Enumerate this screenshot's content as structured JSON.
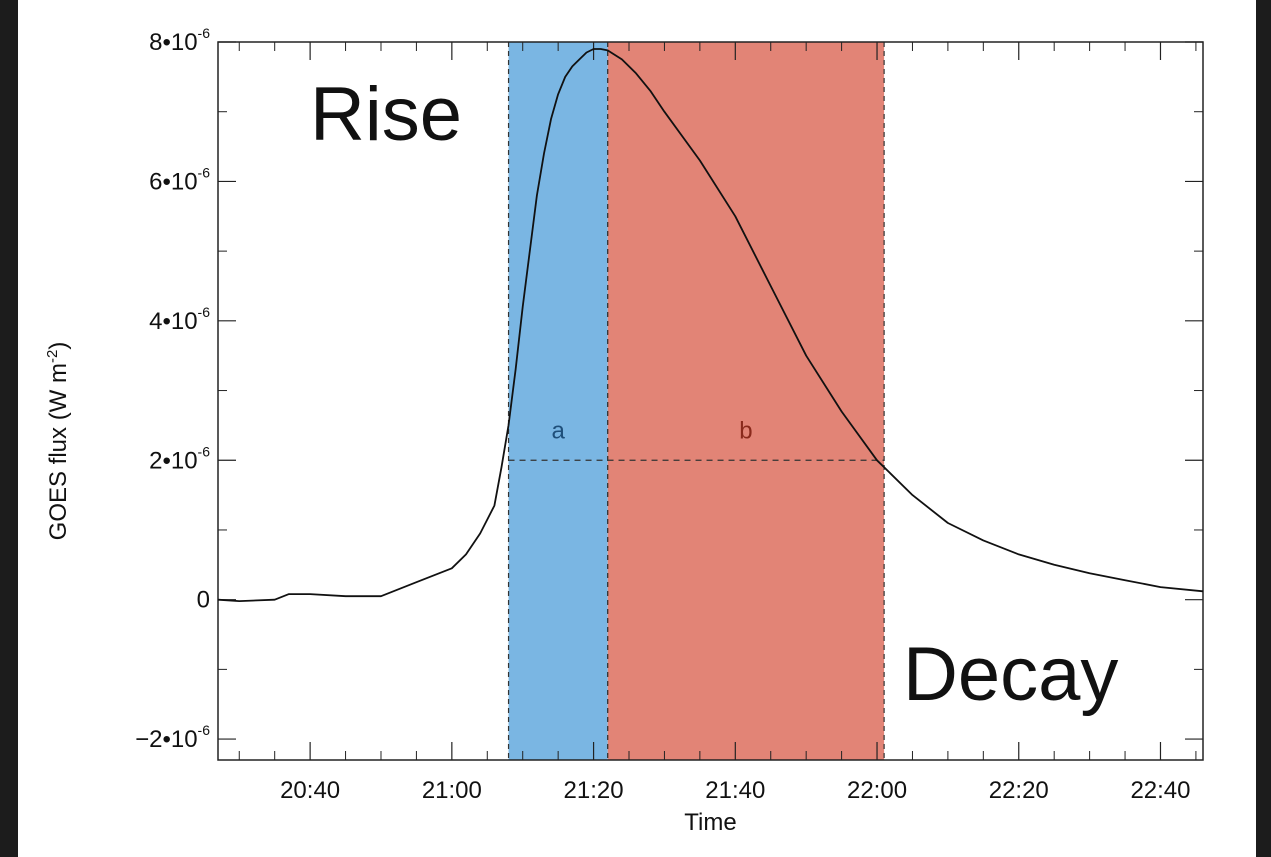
{
  "chart_data": {
    "type": "line",
    "xlabel": "Time",
    "ylabel": "GOES flux (W m",
    "ylabel_sup": "-2",
    "ylabel_close": ")",
    "xlim": [
      "20:27",
      "22:46"
    ],
    "ylim": [
      -2.3e-06,
      8e-06
    ],
    "x_ticks": [
      "20:40",
      "21:00",
      "21:20",
      "21:40",
      "22:00",
      "22:20",
      "22:40"
    ],
    "y_ticks": [
      {
        "value": 8e-06,
        "mantissa": "8•10",
        "exp": "-6"
      },
      {
        "value": 6e-06,
        "mantissa": "6•10",
        "exp": "-6"
      },
      {
        "value": 4e-06,
        "mantissa": "4•10",
        "exp": "-6"
      },
      {
        "value": 2e-06,
        "mantissa": "2•10",
        "exp": "-6"
      },
      {
        "value": 0,
        "mantissa": "0",
        "exp": ""
      },
      {
        "value": -2e-06,
        "mantissa": "−2•10",
        "exp": "-6"
      }
    ],
    "series": [
      {
        "color": "#111111",
        "x": [
          "20:27",
          "20:30",
          "20:35",
          "20:37",
          "20:40",
          "20:45",
          "20:50",
          "20:55",
          "21:00",
          "21:02",
          "21:04",
          "21:06",
          "21:07",
          "21:08",
          "21:09",
          "21:10",
          "21:11",
          "21:12",
          "21:13",
          "21:14",
          "21:15",
          "21:16",
          "21:17",
          "21:18",
          "21:19",
          "21:20",
          "21:21",
          "21:22",
          "21:24",
          "21:26",
          "21:28",
          "21:30",
          "21:35",
          "21:40",
          "21:45",
          "21:50",
          "21:55",
          "22:00",
          "22:05",
          "22:10",
          "22:15",
          "22:20",
          "22:25",
          "22:30",
          "22:35",
          "22:40",
          "22:46"
        ],
        "y": [
          0.0,
          -2e-08,
          0.0,
          8e-08,
          8e-08,
          5e-08,
          5e-08,
          2.5e-07,
          4.5e-07,
          6.5e-07,
          9.5e-07,
          1.35e-06,
          1.9e-06,
          2.5e-06,
          3.3e-06,
          4.2e-06,
          5e-06,
          5.8e-06,
          6.4e-06,
          6.9e-06,
          7.25e-06,
          7.5e-06,
          7.65e-06,
          7.75e-06,
          7.85e-06,
          7.9e-06,
          7.9e-06,
          7.88e-06,
          7.75e-06,
          7.55e-06,
          7.3e-06,
          7e-06,
          6.3e-06,
          5.5e-06,
          4.5e-06,
          3.5e-06,
          2.7e-06,
          2e-06,
          1.5e-06,
          1.1e-06,
          8.5e-07,
          6.5e-07,
          5e-07,
          3.8e-07,
          2.8e-07,
          1.8e-07,
          1.2e-07
        ]
      }
    ],
    "regions": [
      {
        "label": "a",
        "x_start": "21:08",
        "x_end": "21:22",
        "fill": "#7ab6e3",
        "label_color": "#1f4f7a"
      },
      {
        "label": "b",
        "x_start": "21:22",
        "x_end": "22:01",
        "fill": "#e28476",
        "label_color": "#8a2a1c"
      }
    ],
    "threshold": {
      "y": 2e-06,
      "x_start": "21:08",
      "x_end": "22:01"
    },
    "annotations": [
      {
        "text": "Rise"
      },
      {
        "text": "Decay"
      }
    ]
  }
}
